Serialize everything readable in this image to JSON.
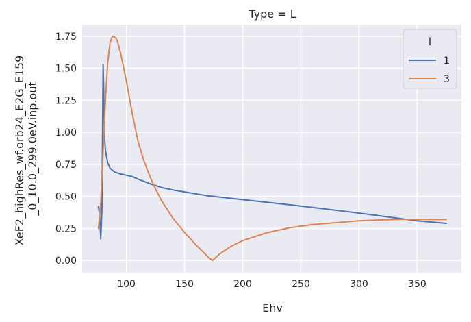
{
  "chart_data": {
    "type": "line",
    "title": "Type = L",
    "xlabel": "Ehv",
    "ylabel_lines": [
      "XeF2_highRes_wf.orb24_E2G_E159",
      "_0_10.0_299.0eV.inp.out"
    ],
    "xlim": [
      62,
      388
    ],
    "ylim": [
      -0.095,
      1.84
    ],
    "xticks": [
      100,
      150,
      200,
      250,
      300,
      350
    ],
    "yticks": [
      "0.00",
      "0.25",
      "0.50",
      "0.75",
      "1.00",
      "1.25",
      "1.50",
      "1.75"
    ],
    "grid": true,
    "legend": {
      "title": "l",
      "placement": "top-right"
    },
    "background": "#eaeaf2",
    "series": [
      {
        "name": "1",
        "color": "#4c72b0",
        "points": [
          [
            76,
            0.42
          ],
          [
            77,
            0.36
          ],
          [
            78,
            0.17
          ],
          [
            79,
            0.4
          ],
          [
            80,
            1.53
          ],
          [
            80.6,
            1.3
          ],
          [
            81,
            1.0
          ],
          [
            82,
            0.86
          ],
          [
            84,
            0.76
          ],
          [
            86,
            0.72
          ],
          [
            90,
            0.69
          ],
          [
            95,
            0.675
          ],
          [
            100,
            0.665
          ],
          [
            105,
            0.655
          ],
          [
            110,
            0.635
          ],
          [
            120,
            0.6
          ],
          [
            130,
            0.57
          ],
          [
            140,
            0.55
          ],
          [
            150,
            0.535
          ],
          [
            170,
            0.505
          ],
          [
            200,
            0.475
          ],
          [
            250,
            0.425
          ],
          [
            300,
            0.37
          ],
          [
            350,
            0.31
          ],
          [
            375,
            0.29
          ]
        ]
      },
      {
        "name": "3",
        "color": "#dd8452",
        "points": [
          [
            76,
            0.25
          ],
          [
            78,
            0.45
          ],
          [
            80,
            0.85
          ],
          [
            82,
            1.25
          ],
          [
            84,
            1.55
          ],
          [
            86,
            1.7
          ],
          [
            88,
            1.75
          ],
          [
            90,
            1.745
          ],
          [
            92,
            1.72
          ],
          [
            95,
            1.62
          ],
          [
            100,
            1.4
          ],
          [
            105,
            1.15
          ],
          [
            110,
            0.93
          ],
          [
            115,
            0.78
          ],
          [
            120,
            0.66
          ],
          [
            125,
            0.56
          ],
          [
            130,
            0.47
          ],
          [
            140,
            0.33
          ],
          [
            150,
            0.22
          ],
          [
            160,
            0.12
          ],
          [
            170,
            0.03
          ],
          [
            174,
            0.0
          ],
          [
            180,
            0.05
          ],
          [
            190,
            0.11
          ],
          [
            200,
            0.155
          ],
          [
            220,
            0.215
          ],
          [
            240,
            0.255
          ],
          [
            260,
            0.28
          ],
          [
            280,
            0.295
          ],
          [
            300,
            0.31
          ],
          [
            320,
            0.317
          ],
          [
            340,
            0.322
          ],
          [
            360,
            0.321
          ],
          [
            375,
            0.32
          ]
        ]
      }
    ]
  }
}
